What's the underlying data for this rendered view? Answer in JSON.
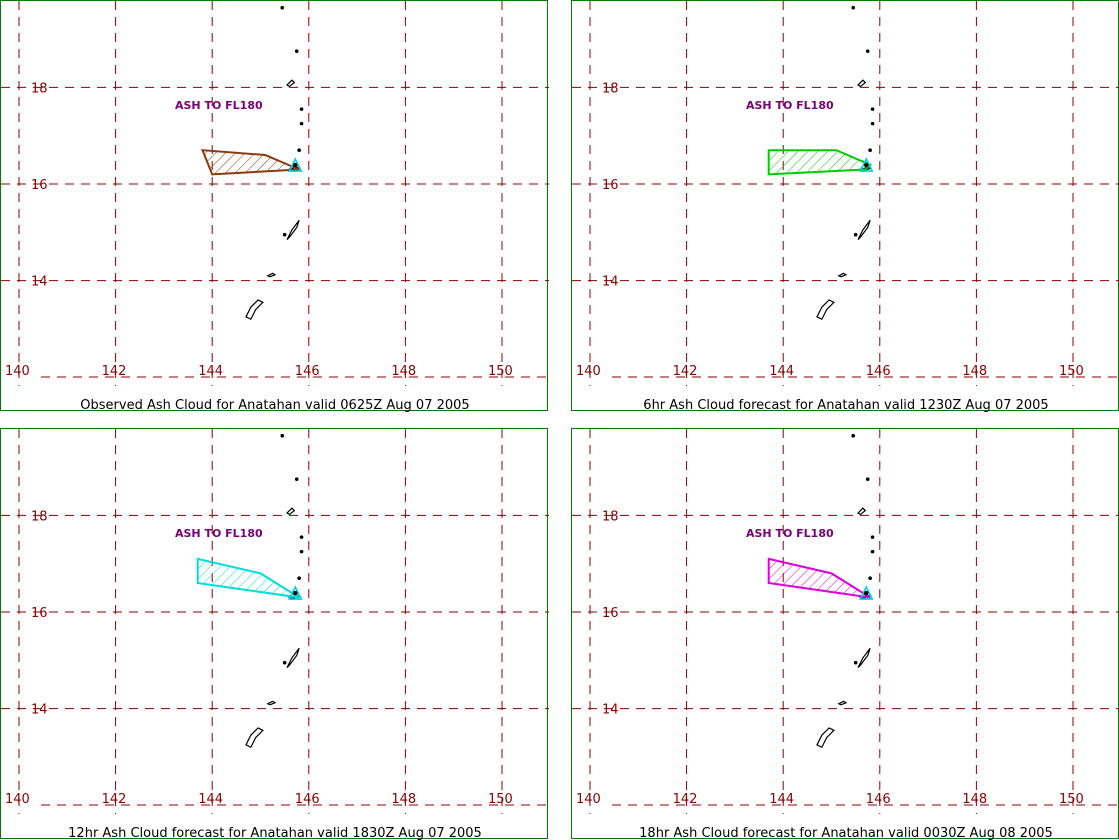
{
  "map": {
    "lon_ticks": [
      140,
      142,
      144,
      146,
      148,
      150
    ],
    "lat_ticks": [
      14,
      16,
      18
    ],
    "volcano": "Anatahan",
    "volcano_icon": "triangle-icon"
  },
  "panels": [
    {
      "id": "observed",
      "title": "Observed Ash Cloud for Anatahan valid 0625Z Aug 07 2005",
      "label": "ASH TO FL180",
      "color": "#8b3a0e",
      "polygon": [
        [
          143.8,
          16.7
        ],
        [
          145.1,
          16.6
        ],
        [
          145.8,
          16.3
        ],
        [
          144.0,
          16.2
        ]
      ]
    },
    {
      "id": "fcst6",
      "title": "6hr Ash Cloud forecast for Anatahan valid 1230Z Aug 07 2005",
      "label": "ASH TO FL180",
      "color": "#00cc00",
      "polygon": [
        [
          143.7,
          16.7
        ],
        [
          145.1,
          16.7
        ],
        [
          145.8,
          16.4
        ],
        [
          145.7,
          16.3
        ],
        [
          143.7,
          16.2
        ]
      ]
    },
    {
      "id": "fcst12",
      "title": "12hr Ash Cloud forecast for Anatahan valid 1830Z Aug 07 2005",
      "label": "ASH TO FL180",
      "color": "#00dddd",
      "polygon": [
        [
          143.7,
          17.1
        ],
        [
          145.0,
          16.8
        ],
        [
          145.8,
          16.3
        ],
        [
          143.7,
          16.6
        ]
      ]
    },
    {
      "id": "fcst18",
      "title": "18hr Ash Cloud forecast for Anatahan valid 0030Z Aug 08 2005",
      "label": "ASH TO FL180",
      "color": "#dd00dd",
      "polygon": [
        [
          143.7,
          17.1
        ],
        [
          145.0,
          16.8
        ],
        [
          145.8,
          16.3
        ],
        [
          143.7,
          16.6
        ]
      ]
    }
  ]
}
